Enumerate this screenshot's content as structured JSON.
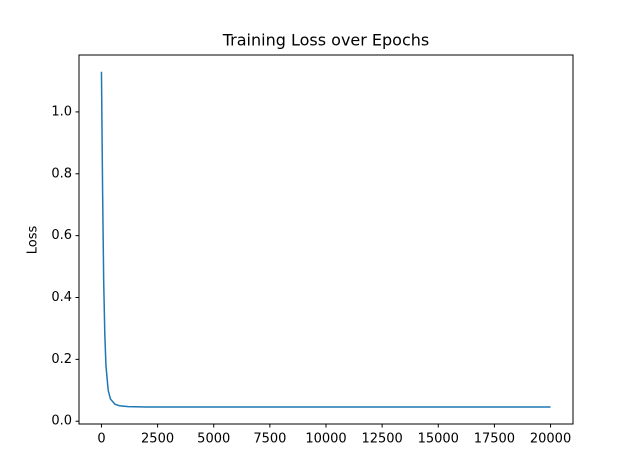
{
  "chart_data": {
    "type": "line",
    "title": "Training Loss over Epochs",
    "y_label": "Loss",
    "x": [
      0,
      50,
      100,
      150,
      200,
      300,
      400,
      600,
      800,
      1200,
      2000,
      20000
    ],
    "series": [
      {
        "color": "#1f77b4",
        "values": [
          1.13,
          0.75,
          0.45,
          0.28,
          0.18,
          0.1,
          0.072,
          0.055,
          0.05,
          0.047,
          0.046,
          0.046
        ]
      }
    ],
    "xlim": [
      -1000,
      21000
    ],
    "xticks": [
      0,
      2500,
      5000,
      7500,
      10000,
      12500,
      15000,
      17500,
      20000
    ],
    "ylim": [
      -0.009,
      1.184
    ],
    "yticks": [
      {
        "value": 0,
        "label": "0.0"
      },
      0.2,
      0.4,
      0.6,
      0.8,
      {
        "value": 1,
        "label": "1.0"
      }
    ],
    "grid": false
  }
}
